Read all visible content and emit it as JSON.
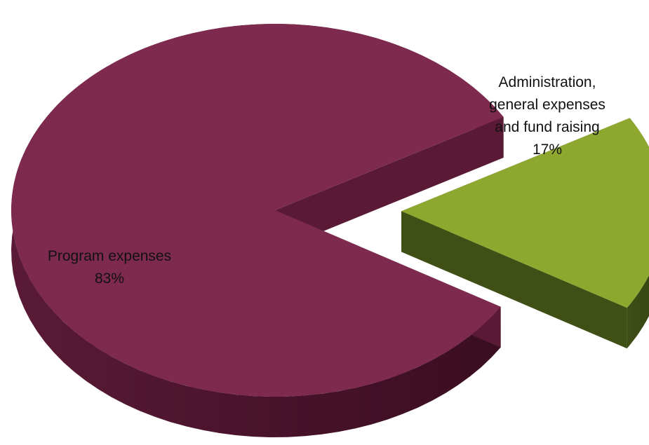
{
  "chart_data": {
    "type": "pie",
    "style": "3d exploded",
    "legend": "none",
    "slices": [
      {
        "label_lines": [
          "Program expenses"
        ],
        "value": 83,
        "value_label": "83%",
        "color": "#7d2a4e",
        "side_color": "#5a1a36",
        "side_dark": "#3a0d20",
        "exploded": false
      },
      {
        "label_lines": [
          "Administration,",
          "general expenses",
          "and fund raising"
        ],
        "value": 17,
        "value_label": "17%",
        "color": "#8ea72f",
        "side_color": "#3f4f16",
        "side_dark": "#34410f",
        "exploded": true
      }
    ]
  }
}
